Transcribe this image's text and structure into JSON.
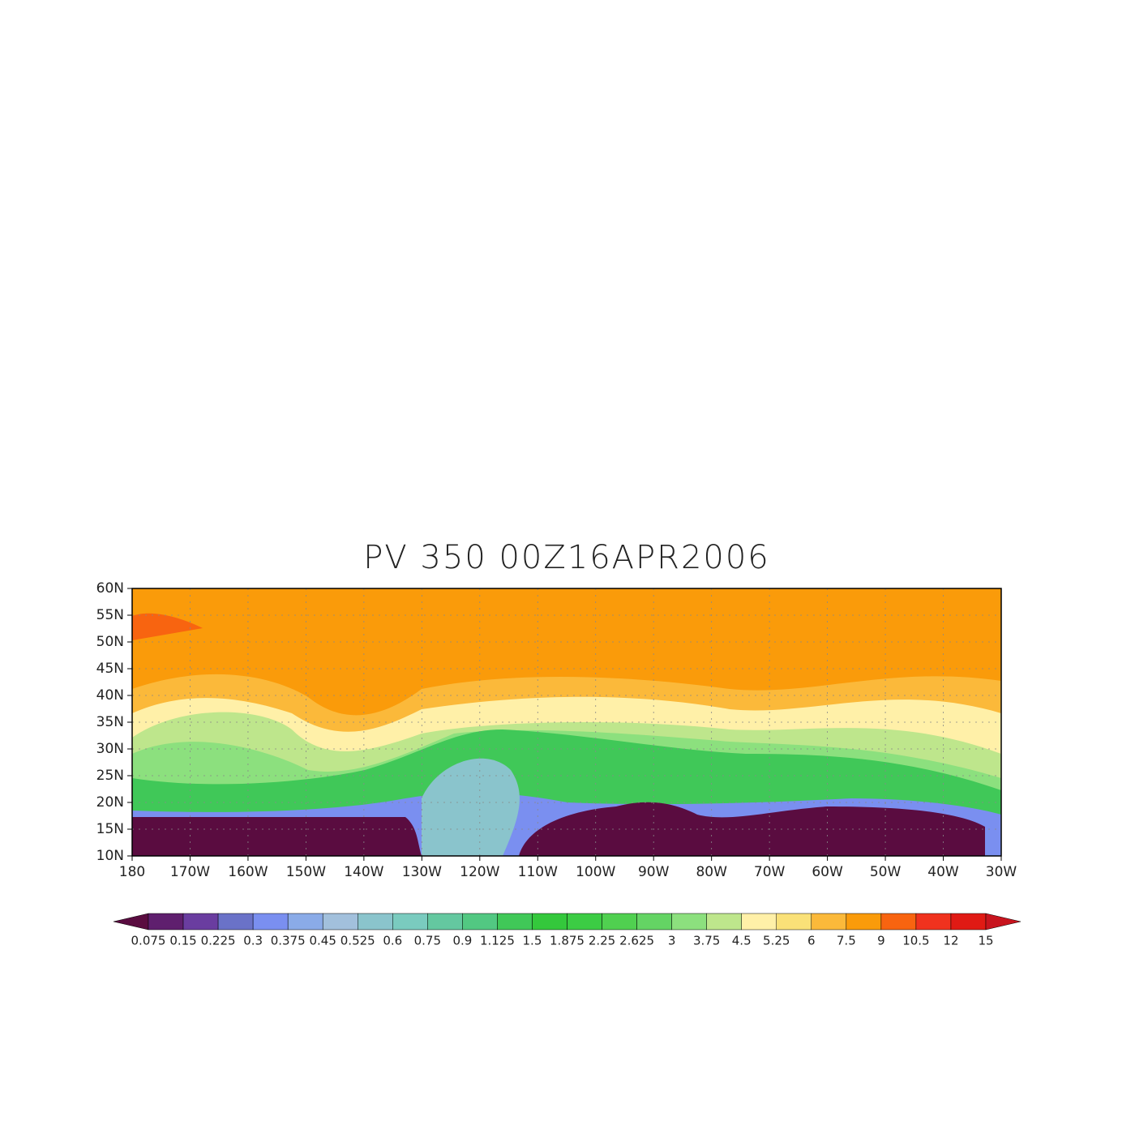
{
  "title": "PV 350 00Z16APR2006",
  "map": {
    "lon_range": [
      -180,
      -30
    ],
    "lat_range": [
      10,
      60
    ],
    "lon_ticks": [
      {
        "value": -180,
        "label": "180"
      },
      {
        "value": -170,
        "label": "170W"
      },
      {
        "value": -160,
        "label": "160W"
      },
      {
        "value": -150,
        "label": "150W"
      },
      {
        "value": -140,
        "label": "140W"
      },
      {
        "value": -130,
        "label": "130W"
      },
      {
        "value": -120,
        "label": "120W"
      },
      {
        "value": -110,
        "label": "110W"
      },
      {
        "value": -100,
        "label": "100W"
      },
      {
        "value": -90,
        "label": "90W"
      },
      {
        "value": -80,
        "label": "80W"
      },
      {
        "value": -70,
        "label": "70W"
      },
      {
        "value": -60,
        "label": "60W"
      },
      {
        "value": -50,
        "label": "50W"
      },
      {
        "value": -40,
        "label": "40W"
      },
      {
        "value": -30,
        "label": "30W"
      }
    ],
    "lat_ticks": [
      {
        "value": 10,
        "label": "10N"
      },
      {
        "value": 15,
        "label": "15N"
      },
      {
        "value": 20,
        "label": "20N"
      },
      {
        "value": 25,
        "label": "25N"
      },
      {
        "value": 30,
        "label": "30N"
      },
      {
        "value": 35,
        "label": "35N"
      },
      {
        "value": 40,
        "label": "40N"
      },
      {
        "value": 45,
        "label": "45N"
      },
      {
        "value": 50,
        "label": "50N"
      },
      {
        "value": 55,
        "label": "55N"
      },
      {
        "value": 60,
        "label": "60N"
      }
    ]
  },
  "colorbar": {
    "levels": [
      0.075,
      0.15,
      0.225,
      0.3,
      0.375,
      0.45,
      0.525,
      0.6,
      0.75,
      0.9,
      1.125,
      1.5,
      1.875,
      2.25,
      2.625,
      3,
      3.75,
      4.5,
      5.25,
      6,
      7.5,
      9,
      10.5,
      12,
      15
    ],
    "colors": [
      "#5a0c40",
      "#5f1f6e",
      "#6a3da0",
      "#6a72c8",
      "#7a8ff0",
      "#8aabe8",
      "#a2c0dc",
      "#8ac4cc",
      "#7acbbf",
      "#64c8a0",
      "#52c882",
      "#40c858",
      "#34c83c",
      "#3ccc44",
      "#50d050",
      "#64d464",
      "#8ce07e",
      "#bee68c",
      "#fff0a8",
      "#fae178",
      "#fbb93a",
      "#fa9b0a",
      "#f86410",
      "#f0321e",
      "#e01a14",
      "#c8141e"
    ]
  }
}
